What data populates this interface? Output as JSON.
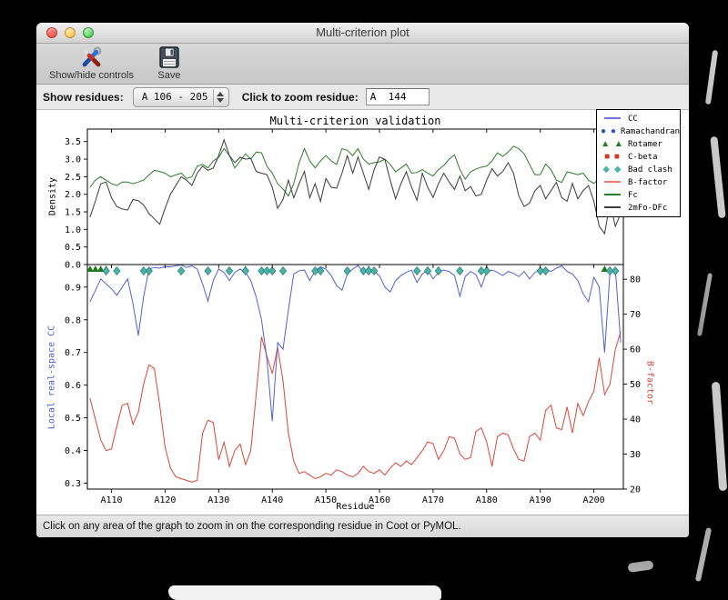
{
  "window": {
    "title": "Multi-criterion plot"
  },
  "toolbar": {
    "items": [
      {
        "label": "Show/hide controls",
        "icon": "tools-icon"
      },
      {
        "label": "Save",
        "icon": "floppy-icon"
      }
    ]
  },
  "controls": {
    "show_residues_label": "Show residues:",
    "show_residues_value": "A 106 - 205",
    "zoom_residue_label": "Click to zoom residue:",
    "zoom_residue_value": "A  144"
  },
  "status_bar": "Click on any area of the graph to zoom in on the corresponding residue in Coot or PyMOL.",
  "chart_data": {
    "type": "line",
    "title": "Multi-criterion validation",
    "xlabel": "Residue",
    "x_range": [
      105.5,
      205.5
    ],
    "residue_start": 106,
    "x_ticks": {
      "values": [
        110,
        120,
        130,
        140,
        150,
        160,
        170,
        180,
        190,
        200
      ],
      "labels": [
        "A110",
        "A120",
        "A130",
        "A140",
        "A150",
        "A160",
        "A170",
        "A180",
        "A190",
        "A200"
      ]
    },
    "top_panel": {
      "ylabel": "Density",
      "ylim": [
        0,
        3.855
      ],
      "yticks": [
        "0.0",
        "0.5",
        "1.0",
        "1.5",
        "2.0",
        "2.5",
        "3.0",
        "3.5"
      ],
      "ytick_values": [
        0,
        0.5,
        1,
        1.5,
        2,
        2.5,
        3,
        3.5
      ],
      "series": [
        {
          "name": "Fc",
          "color": "#2a7e2a",
          "values": [
            2.2,
            2.4,
            2.5,
            2.4,
            2.3,
            2.25,
            2.35,
            2.35,
            2.3,
            2.35,
            2.4,
            2.55,
            2.68,
            2.65,
            2.6,
            2.5,
            2.55,
            2.6,
            2.45,
            2.5,
            2.8,
            2.85,
            2.75,
            2.95,
            3.05,
            3.3,
            3.1,
            2.75,
            2.95,
            3.15,
            3.0,
            3.2,
            3.18,
            2.8,
            2.6,
            2.3,
            2.15,
            1.95,
            2.3,
            2.9,
            3.3,
            2.95,
            2.75,
            2.95,
            3.1,
            2.95,
            2.85,
            3.3,
            3.25,
            3.1,
            3.3,
            3.0,
            2.86,
            2.9,
            2.92,
            3.0,
            2.85,
            2.64,
            2.75,
            2.86,
            2.6,
            2.62,
            2.7,
            2.6,
            2.52,
            2.7,
            2.82,
            3.0,
            3.12,
            2.7,
            2.43,
            2.64,
            2.72,
            2.77,
            2.8,
            2.95,
            3.18,
            3.08,
            3.2,
            3.37,
            3.3,
            3.15,
            2.85,
            2.56,
            2.56,
            2.86,
            2.7,
            2.4,
            2.34,
            2.64,
            2.6,
            2.56,
            2.6,
            2.4,
            2.31,
            2.45,
            2.6,
            2.55,
            2.5,
            2.55
          ]
        },
        {
          "name": "2mFo-DFc",
          "color": "#3a3a3a",
          "values": [
            1.35,
            1.8,
            2.3,
            2.35,
            1.9,
            1.65,
            1.58,
            1.55,
            1.85,
            1.82,
            1.7,
            1.45,
            1.3,
            1.15,
            1.6,
            2.0,
            2.25,
            2.5,
            2.4,
            2.25,
            2.6,
            2.8,
            2.68,
            2.75,
            3.1,
            3.55,
            3.1,
            2.9,
            3.05,
            3.0,
            3.02,
            2.65,
            2.6,
            2.56,
            2.2,
            1.6,
            1.85,
            2.4,
            1.9,
            2.3,
            2.65,
            1.9,
            2.3,
            1.8,
            2.45,
            2.2,
            2.17,
            2.6,
            3.1,
            2.6,
            3.06,
            2.6,
            2.14,
            2.7,
            3.06,
            2.99,
            2.4,
            1.87,
            2.3,
            2.64,
            2.2,
            1.83,
            2.6,
            2.2,
            1.91,
            2.3,
            2.6,
            2.35,
            2.14,
            2.52,
            2.1,
            2.22,
            1.95,
            2.0,
            2.4,
            2.73,
            2.52,
            2.65,
            2.9,
            2.6,
            1.95,
            1.65,
            1.75,
            2.1,
            2.25,
            1.87,
            2.1,
            2.34,
            1.9,
            1.8,
            2.31,
            1.87,
            2.1,
            2.25,
            1.8,
            1.09,
            0.88,
            1.74,
            1.09,
            1.45
          ]
        }
      ]
    },
    "bottom_panel": {
      "ylabel_left": "Local real-space CC",
      "ylim_left": [
        0.282,
        0.969
      ],
      "yticks_left": [
        "0.3",
        "0.4",
        "0.5",
        "0.6",
        "0.7",
        "0.8",
        "0.9"
      ],
      "ytick_values_left": [
        0.3,
        0.4,
        0.5,
        0.6,
        0.7,
        0.8,
        0.9
      ],
      "ylabel_right": "B-factor",
      "ylim_right": [
        20,
        84.2
      ],
      "yticks_right": [
        "20",
        "30",
        "40",
        "50",
        "60",
        "70",
        "80"
      ],
      "ytick_values_right": [
        20,
        30,
        40,
        50,
        60,
        70,
        80
      ],
      "series": [
        {
          "name": "CC",
          "axis": "left",
          "color": "#5161d3",
          "values": [
            0.855,
            0.89,
            0.925,
            0.91,
            0.895,
            0.875,
            0.9,
            0.925,
            0.85,
            0.752,
            0.87,
            0.955,
            0.96,
            0.958,
            0.962,
            0.962,
            0.965,
            0.968,
            0.96,
            0.965,
            0.955,
            0.91,
            0.857,
            0.92,
            0.955,
            0.945,
            0.92,
            0.945,
            0.955,
            0.945,
            0.92,
            0.87,
            0.8,
            0.68,
            0.49,
            0.73,
            0.71,
            0.83,
            0.94,
            0.95,
            0.952,
            0.92,
            0.95,
            0.962,
            0.955,
            0.935,
            0.905,
            0.89,
            0.94,
            0.955,
            0.966,
            0.945,
            0.955,
            0.948,
            0.935,
            0.9,
            0.885,
            0.92,
            0.935,
            0.945,
            0.952,
            0.914,
            0.94,
            0.952,
            0.925,
            0.945,
            0.952,
            0.948,
            0.935,
            0.872,
            0.932,
            0.948,
            0.938,
            0.9,
            0.948,
            0.952,
            0.945,
            0.935,
            0.948,
            0.942,
            0.932,
            0.948,
            0.925,
            0.945,
            0.952,
            0.955,
            0.948,
            0.958,
            0.965,
            0.948,
            0.94,
            0.92,
            0.88,
            0.855,
            0.93,
            0.9,
            0.7,
            0.945,
            0.955,
            0.73
          ]
        },
        {
          "name": "B-factor",
          "axis": "right",
          "color": "#dd4537",
          "values": [
            46,
            40,
            34,
            31,
            31.5,
            38,
            44,
            44.5,
            38.5,
            42,
            50,
            55.5,
            54.5,
            44,
            32,
            26,
            23.5,
            23,
            22.5,
            22,
            22.5,
            36,
            39.7,
            39,
            28.4,
            33.4,
            26.5,
            31,
            32.9,
            27,
            31,
            47,
            63.5,
            58,
            53,
            60.5,
            51,
            36,
            28,
            24.5,
            25,
            24,
            23,
            23.5,
            24.5,
            24,
            25.5,
            25,
            24,
            23.5,
            24.5,
            26.5,
            25,
            24.5,
            25.5,
            24,
            26,
            27.5,
            26.5,
            28,
            27,
            29,
            31,
            33.5,
            33,
            28.5,
            31,
            35,
            34.5,
            30,
            28.5,
            29,
            36.5,
            37.5,
            33.5,
            26.5,
            35,
            36,
            35.5,
            31.5,
            28.5,
            28,
            35,
            36,
            34,
            42.5,
            44,
            37.5,
            37,
            43.5,
            36,
            44.5,
            41,
            45,
            48,
            57.5,
            47,
            50,
            60,
            65
          ]
        }
      ],
      "markers": {
        "rotamer": {
          "shape": "triangle",
          "color": "#1f7a1f",
          "residues": [
            106,
            107,
            108,
            109,
            135,
            158,
            180,
            202
          ]
        },
        "bad_clash": {
          "shape": "diamond",
          "color": "#4ab4aa",
          "border": "#2e7f78",
          "residues": [
            109,
            111,
            116,
            117,
            123,
            128,
            132,
            135,
            138,
            139,
            140,
            142,
            148,
            149,
            154,
            157,
            158,
            159,
            167,
            169,
            171,
            175,
            179,
            180,
            190,
            191,
            203,
            204
          ]
        },
        "ramachandran": {
          "shape": "circle",
          "color": "#2b50c8",
          "residues": []
        },
        "c_beta": {
          "shape": "square",
          "color": "#cf3a28",
          "residues": []
        }
      }
    },
    "legend": [
      {
        "label": "CC",
        "type": "line",
        "color": "#6b79e0"
      },
      {
        "label": "Ramachandran",
        "type": "circle",
        "color": "#2b50c8"
      },
      {
        "label": "Rotamer",
        "type": "triangle",
        "color": "#1f7a1f"
      },
      {
        "label": "C-beta",
        "type": "square",
        "color": "#cf3a28"
      },
      {
        "label": "Bad clash",
        "type": "diamond",
        "color": "#4ab4aa"
      },
      {
        "label": "B-factor",
        "type": "line",
        "color": "#f4796b"
      },
      {
        "label": "Fc",
        "type": "line",
        "color": "#2a7e2a"
      },
      {
        "label": "2mFo-DFc",
        "type": "line",
        "color": "#3c3c3c"
      }
    ]
  }
}
